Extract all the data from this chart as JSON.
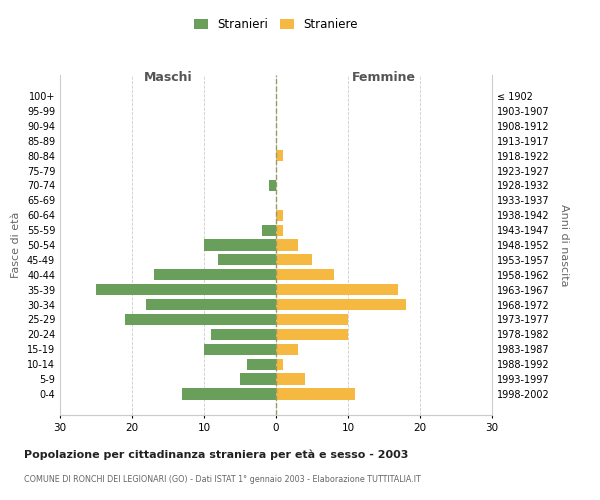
{
  "age_groups": [
    "100+",
    "95-99",
    "90-94",
    "85-89",
    "80-84",
    "75-79",
    "70-74",
    "65-69",
    "60-64",
    "55-59",
    "50-54",
    "45-49",
    "40-44",
    "35-39",
    "30-34",
    "25-29",
    "20-24",
    "15-19",
    "10-14",
    "5-9",
    "0-4"
  ],
  "birth_years": [
    "≤ 1902",
    "1903-1907",
    "1908-1912",
    "1913-1917",
    "1918-1922",
    "1923-1927",
    "1928-1932",
    "1933-1937",
    "1938-1942",
    "1943-1947",
    "1948-1952",
    "1953-1957",
    "1958-1962",
    "1963-1967",
    "1968-1972",
    "1973-1977",
    "1978-1982",
    "1983-1987",
    "1988-1992",
    "1993-1997",
    "1998-2002"
  ],
  "maschi": [
    0,
    0,
    0,
    0,
    0,
    0,
    1,
    0,
    0,
    2,
    10,
    8,
    17,
    25,
    18,
    21,
    9,
    10,
    4,
    5,
    13
  ],
  "femmine": [
    0,
    0,
    0,
    0,
    1,
    0,
    0,
    0,
    1,
    1,
    3,
    5,
    8,
    17,
    18,
    10,
    10,
    3,
    1,
    4,
    11
  ],
  "male_color": "#6a9e5b",
  "female_color": "#f5b942",
  "grid_color": "#cccccc",
  "title": "Popolazione per cittadinanza straniera per età e sesso - 2003",
  "subtitle": "COMUNE DI RONCHI DEI LEGIONARI (GO) - Dati ISTAT 1° gennaio 2003 - Elaborazione TUTTITALIA.IT",
  "xlabel_left": "Maschi",
  "xlabel_right": "Femmine",
  "ylabel_left": "Fasce di età",
  "ylabel_right": "Anni di nascita",
  "legend_male": "Stranieri",
  "legend_female": "Straniere",
  "xlim": 30,
  "background_color": "#ffffff"
}
